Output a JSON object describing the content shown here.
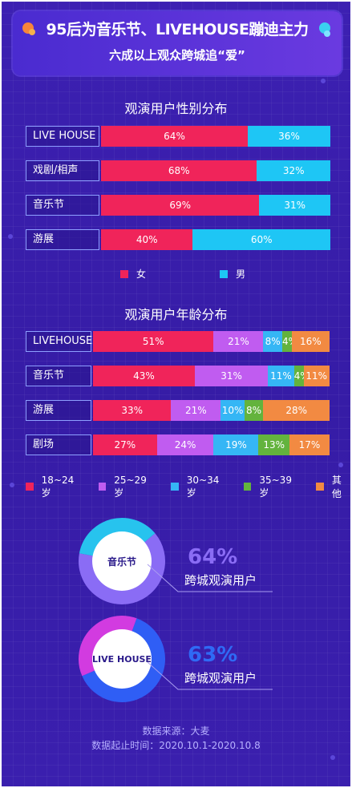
{
  "header": {
    "title": "95后为音乐节、LIVEHOUSE蹦迪主力",
    "subtitle": "六成以上观众跨城追“爱”"
  },
  "gender_section": {
    "title": "观演用户性别分布"
  },
  "age_section": {
    "title": "观演用户年龄分布"
  },
  "colors": {
    "female": "#f0245a",
    "male": "#1ec6f5",
    "age": [
      "#f0245a",
      "#c05cf0",
      "#35b6f5",
      "#63b33d",
      "#f28a42"
    ],
    "donut_music": [
      "#8a6cf5",
      "#27c3ee"
    ],
    "donut_live": [
      "#2f5ef5",
      "#d23be0"
    ]
  },
  "chart_data": [
    {
      "type": "bar",
      "stacked": true,
      "orientation": "horizontal",
      "title": "观演用户性别分布",
      "categories": [
        "LIVE HOUSE",
        "戏剧/相声",
        "音乐节",
        "游展"
      ],
      "series": [
        {
          "name": "女",
          "values": [
            64,
            68,
            69,
            40
          ]
        },
        {
          "name": "男",
          "values": [
            36,
            32,
            31,
            60
          ]
        }
      ],
      "legend": "bottom"
    },
    {
      "type": "bar",
      "stacked": true,
      "orientation": "horizontal",
      "title": "观演用户年龄分布",
      "categories": [
        "LIVEHOUSE",
        "音乐节",
        "游展",
        "剧场"
      ],
      "series": [
        {
          "name": "18~24岁",
          "values": [
            51,
            43,
            33,
            27
          ]
        },
        {
          "name": "25~29岁",
          "values": [
            21,
            31,
            21,
            24
          ]
        },
        {
          "name": "30~34岁",
          "values": [
            8,
            11,
            10,
            19
          ]
        },
        {
          "name": "35~39岁",
          "values": [
            4,
            4,
            8,
            13
          ]
        },
        {
          "name": "其他",
          "values": [
            16,
            11,
            28,
            17
          ]
        }
      ],
      "legend": "bottom"
    },
    {
      "type": "pie",
      "donut": true,
      "center_label": "音乐节",
      "value_label": "64%",
      "caption": "跨城观演用户",
      "values": [
        64,
        36
      ]
    },
    {
      "type": "pie",
      "donut": true,
      "center_label": "LIVE HOUSE",
      "value_label": "63%",
      "caption": "跨城观演用户",
      "values": [
        63,
        37
      ]
    }
  ],
  "footer": {
    "source": "数据来源：大麦",
    "period": "数据起止时间：2020.10.1-2020.10.8"
  }
}
